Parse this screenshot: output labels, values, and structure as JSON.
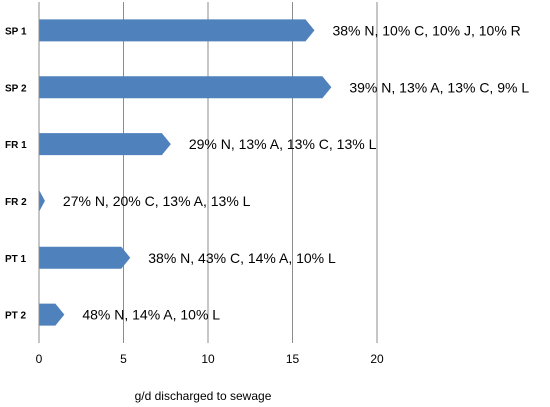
{
  "chart_data": {
    "type": "bar",
    "orientation": "horizontal",
    "categories": [
      "SP 1",
      "SP 2",
      "FR 1",
      "FR 2",
      "PT 1",
      "PT 2"
    ],
    "values": [
      16.3,
      17.3,
      7.8,
      0.35,
      5.4,
      1.5
    ],
    "data_labels": [
      "38% N, 10% C, 10% J, 10% R",
      "39% N, 13% A, 13% C, 9% L",
      "29% N, 13% A, 13% C, 13% L",
      "27% N, 20% C, 13% A, 13% L",
      "38% N, 43% C, 14% A, 10% L",
      "48% N, 14% A, 10% L"
    ],
    "xlabel": "g/d discharged to sewage",
    "ylabel": "",
    "xlim": [
      0,
      20
    ],
    "xticks": [
      0,
      5,
      10,
      15,
      20
    ],
    "grid": "vertical",
    "bar_color": "#4F81BD",
    "bar_shape": "arrow-pentagon"
  }
}
